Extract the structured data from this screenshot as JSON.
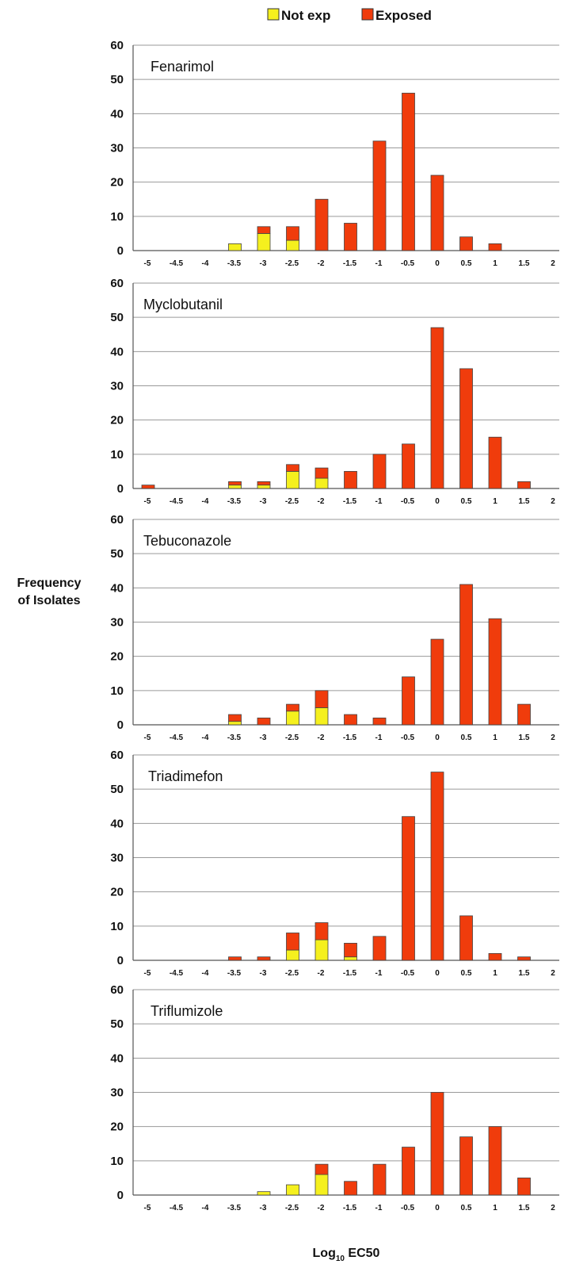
{
  "chart_data": {
    "type": "bar",
    "stacked": true,
    "ylabel_line1": "Frequency",
    "ylabel_line2": "of Isolates",
    "xlabel_base": "Log",
    "xlabel_sub": "10",
    "xlabel_rest": " EC50",
    "ylim": [
      0,
      60
    ],
    "yticks": [
      0,
      10,
      20,
      30,
      40,
      50,
      60
    ],
    "grid": true,
    "legend_position": "top-center",
    "series_colors": {
      "not_exp": "#f5f01e",
      "exposed": "#f03c0c"
    },
    "legend": [
      {
        "key": "not_exp",
        "label": "Not exp"
      },
      {
        "key": "exposed",
        "label": "Exposed"
      }
    ],
    "categories": [
      "-5",
      "-4.5",
      "-4",
      "-3.5",
      "-3",
      "-2.5",
      "-2",
      "-1.5",
      "-1",
      "-0.5",
      "0",
      "0.5",
      "1",
      "1.5",
      "2"
    ],
    "panels": [
      {
        "title": "Fenarimol",
        "not_exp": [
          0,
          0,
          0,
          2,
          5,
          3,
          0,
          0,
          0,
          0,
          0,
          0,
          0,
          0,
          0
        ],
        "exposed": [
          0,
          0,
          0,
          0,
          2,
          4,
          15,
          8,
          32,
          46,
          22,
          4,
          2,
          0,
          0
        ]
      },
      {
        "title": "Myclobutanil",
        "not_exp": [
          0,
          0,
          0,
          1,
          1,
          5,
          3,
          0,
          0,
          0,
          0,
          0,
          0,
          0,
          0
        ],
        "exposed": [
          1,
          0,
          0,
          1,
          1,
          2,
          3,
          5,
          10,
          13,
          47,
          35,
          15,
          2,
          0
        ]
      },
      {
        "title": "Tebuconazole",
        "not_exp": [
          0,
          0,
          0,
          1,
          0,
          4,
          5,
          0,
          0,
          0,
          0,
          0,
          0,
          0,
          0
        ],
        "exposed": [
          0,
          0,
          0,
          2,
          2,
          2,
          5,
          3,
          2,
          14,
          25,
          41,
          31,
          6,
          0
        ]
      },
      {
        "title": "Triadimefon",
        "not_exp": [
          0,
          0,
          0,
          0,
          0,
          3,
          6,
          1,
          0,
          0,
          0,
          0,
          0,
          0,
          0
        ],
        "exposed": [
          0,
          0,
          0,
          1,
          1,
          5,
          5,
          4,
          7,
          42,
          55,
          13,
          2,
          1,
          0
        ]
      },
      {
        "title": "Triflumizole",
        "not_exp": [
          0,
          0,
          0,
          0,
          1,
          3,
          6,
          0,
          0,
          0,
          0,
          0,
          0,
          0,
          0
        ],
        "exposed": [
          0,
          0,
          0,
          0,
          0,
          0,
          3,
          4,
          9,
          14,
          30,
          17,
          20,
          5,
          0
        ]
      }
    ]
  }
}
